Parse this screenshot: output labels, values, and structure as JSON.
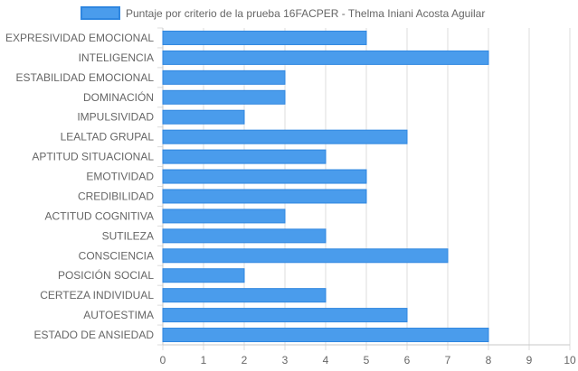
{
  "chart_data": {
    "type": "bar",
    "orientation": "horizontal",
    "categories": [
      "EXPRESIVIDAD EMOCIONAL",
      "INTELIGENCIA",
      "ESTABILIDAD EMOCIONAL",
      "DOMINACIÓN",
      "IMPULSIVIDAD",
      "LEALTAD GRUPAL",
      "APTITUD SITUACIONAL",
      "EMOTIVIDAD",
      "CREDIBILIDAD",
      "ACTITUD COGNITIVA",
      "SUTILEZA",
      "CONSCIENCIA",
      "POSICIÓN SOCIAL",
      "CERTEZA INDIVIDUAL",
      "AUTOESTIMA",
      "ESTADO DE ANSIEDAD"
    ],
    "series": [
      {
        "name": "Puntaje por criterio de la prueba 16FACPER - Thelma Iniani Acosta Aguilar",
        "values": [
          5,
          8,
          3,
          3,
          2,
          6,
          4,
          5,
          5,
          3,
          4,
          7,
          2,
          4,
          6,
          8
        ],
        "color": "#4a9cec",
        "border_color": "#2e86e0"
      }
    ],
    "xlim": [
      0,
      10
    ],
    "xticks": [
      "0",
      "1",
      "2",
      "3",
      "4",
      "5",
      "6",
      "7",
      "8",
      "9",
      "10"
    ],
    "grid": true,
    "legend_position": "top"
  }
}
